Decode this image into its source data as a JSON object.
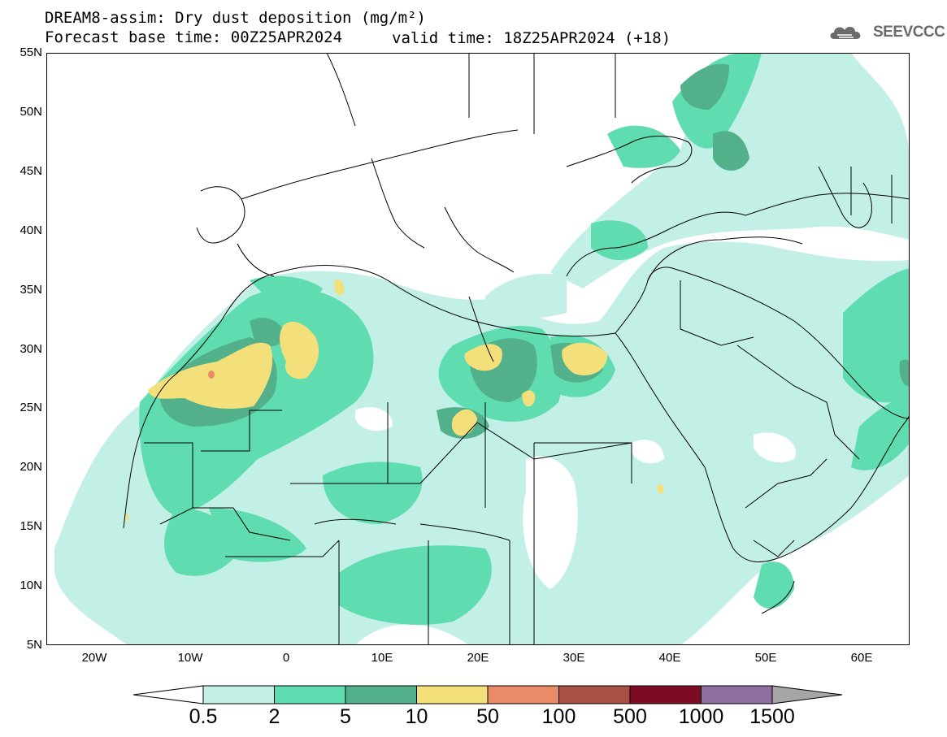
{
  "header": {
    "title_line1": "DREAM8-assim: Dry dust deposition (mg/m²)",
    "title_line2": "Forecast base time: 00Z25APR2024",
    "valid_time": "valid time: 18Z25APR2024 (+18)",
    "logo_text": "SEEVCCC"
  },
  "map": {
    "extent": {
      "lon_min": -25,
      "lon_max": 65,
      "lat_min": 5,
      "lat_max": 55
    },
    "lat_ticks": [
      {
        "lat": 55,
        "label": "55N"
      },
      {
        "lat": 50,
        "label": "50N"
      },
      {
        "lat": 45,
        "label": "45N"
      },
      {
        "lat": 40,
        "label": "40N"
      },
      {
        "lat": 35,
        "label": "35N"
      },
      {
        "lat": 30,
        "label": "30N"
      },
      {
        "lat": 25,
        "label": "25N"
      },
      {
        "lat": 20,
        "label": "20N"
      },
      {
        "lat": 15,
        "label": "15N"
      },
      {
        "lat": 10,
        "label": "10N"
      },
      {
        "lat": 5,
        "label": "5N"
      }
    ],
    "lon_ticks": [
      {
        "lon": -20,
        "label": "20W"
      },
      {
        "lon": -10,
        "label": "10W"
      },
      {
        "lon": 0,
        "label": "0"
      },
      {
        "lon": 10,
        "label": "10E"
      },
      {
        "lon": 20,
        "label": "20E"
      },
      {
        "lon": 30,
        "label": "30E"
      },
      {
        "lon": 40,
        "label": "40E"
      },
      {
        "lon": 50,
        "label": "50E"
      },
      {
        "lon": 60,
        "label": "60E"
      }
    ]
  },
  "colorbar": {
    "levels": [
      "0.5",
      "2",
      "5",
      "10",
      "50",
      "100",
      "500",
      "1000",
      "1500"
    ],
    "colors": {
      "below": "#ffffff",
      "c1": "#c2efe6",
      "c2": "#5fdcb0",
      "c3": "#52b08a",
      "c4": "#f4e07b",
      "c5": "#e98b66",
      "c6": "#a85041",
      "c7": "#7d0b24",
      "c8": "#8f6f9f",
      "above": "#a6a6a6"
    }
  }
}
